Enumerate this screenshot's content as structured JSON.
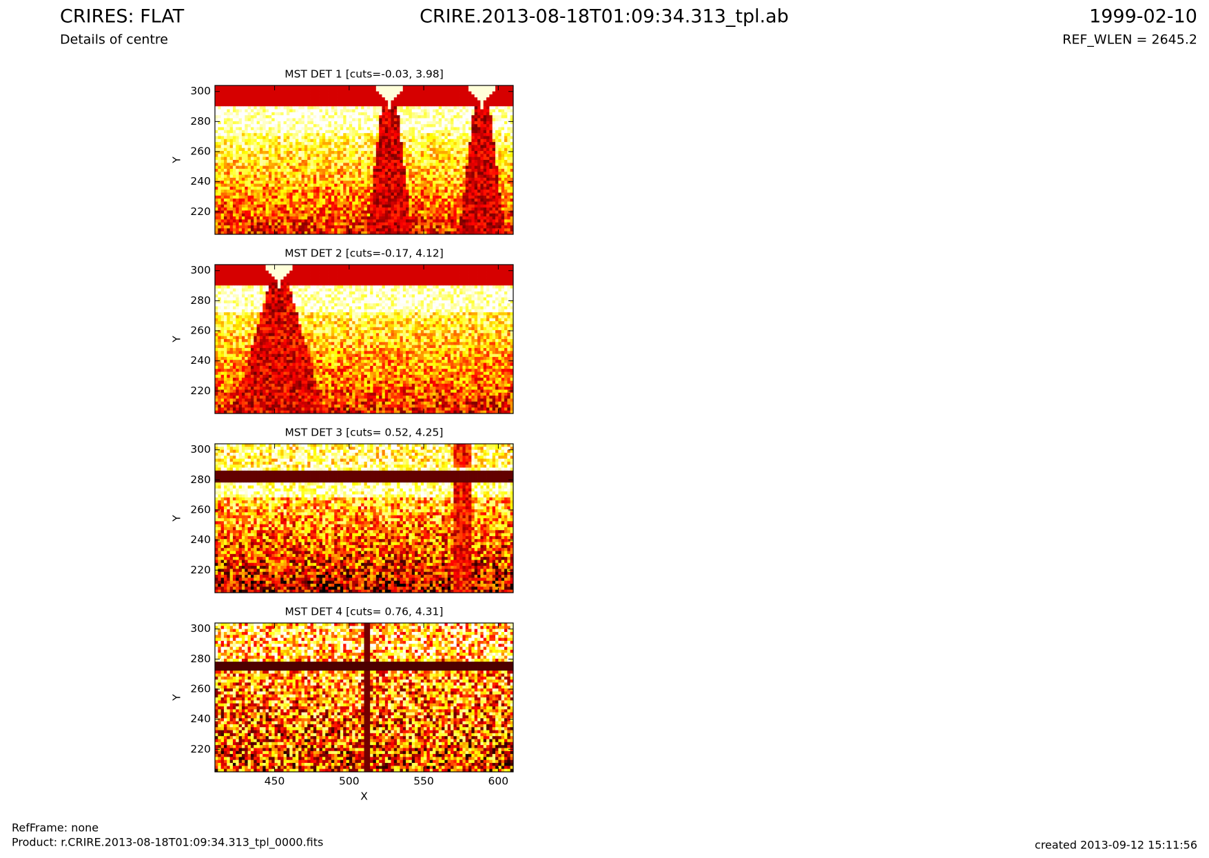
{
  "header": {
    "title": "CRIRES: FLAT",
    "subtitle": "Details of centre",
    "filename": "CRIRE.2013-08-18T01:09:34.313_tpl.ab",
    "date": "1999-02-10",
    "ref_wlen": "REF_WLEN = 2645.2"
  },
  "footer": {
    "refframe": "RefFrame: none",
    "product": "Product: r.CRIRE.2013-08-18T01:09:34.313_tpl_0000.fits",
    "created": "created 2013-09-12 15:11:56"
  },
  "chart_data": [
    {
      "type": "heatmap",
      "title": "MST DET 1 [cuts=-0.03, 3.98]",
      "ylabel": "Y",
      "xlim": [
        410,
        610
      ],
      "ylim": [
        205,
        304
      ],
      "xticks": [
        450,
        500,
        550,
        600
      ],
      "yticks": [
        220,
        240,
        260,
        280,
        300
      ]
    },
    {
      "type": "heatmap",
      "title": "MST DET 2 [cuts=-0.17, 4.12]",
      "ylabel": "Y",
      "xlim": [
        410,
        610
      ],
      "ylim": [
        205,
        304
      ],
      "xticks": [
        450,
        500,
        550,
        600
      ],
      "yticks": [
        220,
        240,
        260,
        280,
        300
      ]
    },
    {
      "type": "heatmap",
      "title": "MST DET 3 [cuts= 0.52, 4.25]",
      "ylabel": "Y",
      "xlim": [
        410,
        610
      ],
      "ylim": [
        205,
        304
      ],
      "xticks": [
        450,
        500,
        550,
        600
      ],
      "yticks": [
        220,
        240,
        260,
        280,
        300
      ]
    },
    {
      "type": "heatmap",
      "title": "MST DET 4 [cuts= 0.76, 4.31]",
      "ylabel": "Y",
      "xlabel": "X",
      "xlim": [
        410,
        610
      ],
      "ylim": [
        205,
        304
      ],
      "xticks": [
        450,
        500,
        550,
        600
      ],
      "yticks": [
        220,
        240,
        260,
        280,
        300
      ]
    }
  ]
}
